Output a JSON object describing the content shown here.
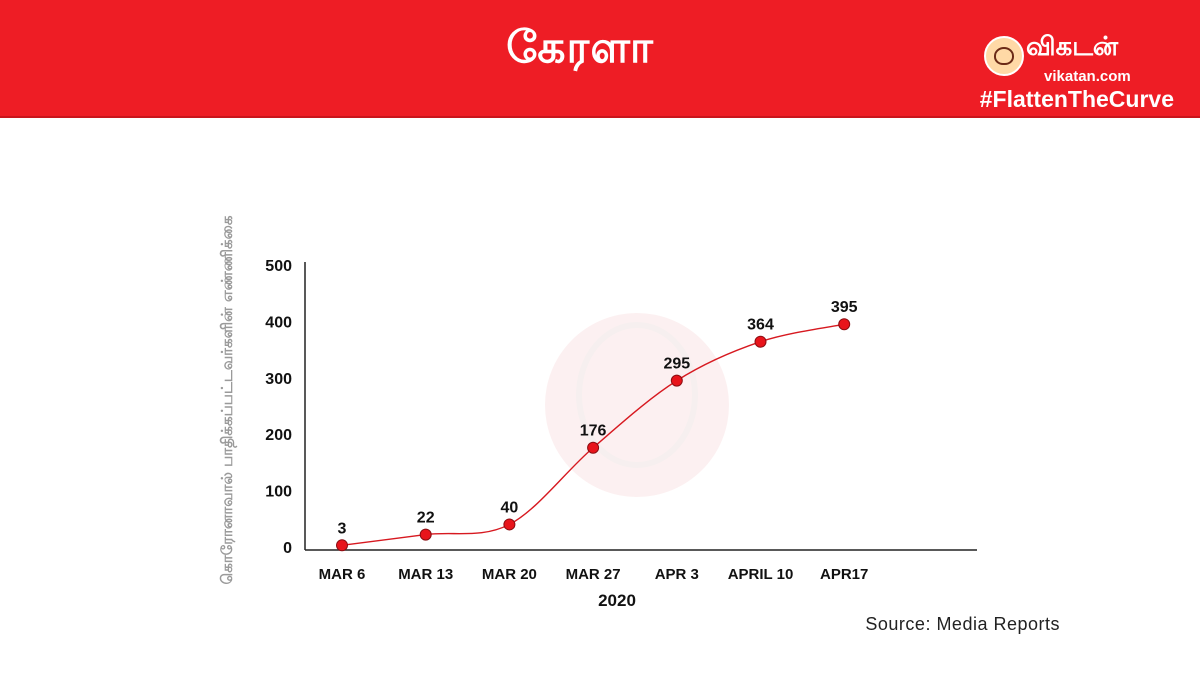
{
  "header": {
    "title": "கேரளா",
    "brand_name": "விகடன்",
    "brand_url": "vikatan.com",
    "hashtag": "#FlattenTheCurve"
  },
  "source": "Source: Media Reports",
  "colors": {
    "banner": "#ee1d25",
    "line": "#d71920",
    "marker": "#e8141b",
    "axis_label": "#9a9a9a"
  },
  "chart_data": {
    "type": "line",
    "title": "",
    "xlabel": "2020",
    "ylabel": "கொரோனாவால் பாதிக்கப்பட்டவர்களின் எண்ணிக்கை",
    "categories": [
      "MAR 6",
      "MAR 13",
      "MAR 20",
      "MAR 27",
      "APR 3",
      "APRIL 10",
      "APR17"
    ],
    "values": [
      3,
      22,
      40,
      176,
      295,
      364,
      395
    ],
    "yticks": [
      0,
      100,
      200,
      300,
      400,
      500
    ],
    "ylim": [
      0,
      500
    ],
    "grid": false,
    "legend": "none",
    "smooth": true
  }
}
